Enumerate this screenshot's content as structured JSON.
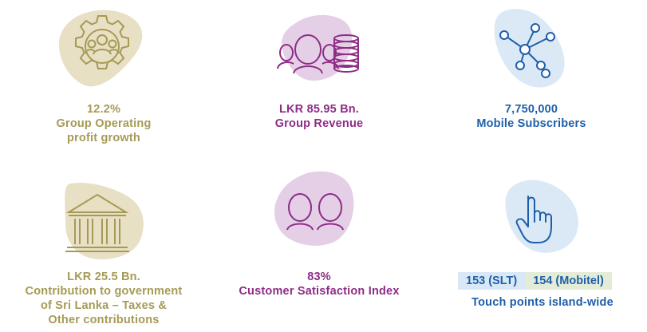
{
  "colors": {
    "gold": "#a59a55",
    "gold_blob": "#e8e0c4",
    "purple": "#8e2c86",
    "purple_blob": "#e4cfe6",
    "blue": "#1f5fa8",
    "blue_blob": "#dbe9f7"
  },
  "tiles": [
    {
      "icon": "gear-people-icon",
      "lines": [
        "12.2%",
        "Group Operating",
        "profit growth"
      ]
    },
    {
      "icon": "people-coins-icon",
      "lines": [
        "LKR 85.95 Bn.",
        "Group Revenue"
      ]
    },
    {
      "icon": "network-nodes-icon",
      "lines": [
        "7,750,000",
        "Mobile Subscribers"
      ]
    },
    {
      "icon": "government-building-icon",
      "lines": [
        "LKR 25.5 Bn.",
        "Contribution to government",
        "of Sri Lanka – Taxes &",
        "Other contributions"
      ]
    },
    {
      "icon": "two-people-icon",
      "lines": [
        "83%",
        "Customer Satisfaction Index"
      ]
    },
    {
      "icon": "pointing-hand-icon",
      "badges": [
        "153 (SLT)",
        "154 (Mobitel)"
      ],
      "caption": "Touch points island-wide"
    }
  ]
}
